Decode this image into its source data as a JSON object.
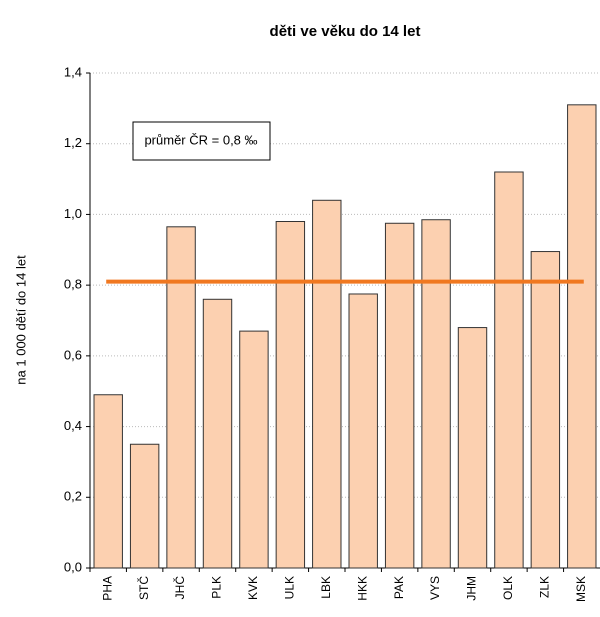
{
  "chart_data": {
    "type": "bar",
    "title": "děti ve věku do 14 let",
    "y_label": "na 1 000 dětí  do 14 let",
    "annotation": "průměr ČR = 0,8 ‰",
    "categories": [
      "PHA",
      "STČ",
      "JHČ",
      "PLK",
      "KVK",
      "ULK",
      "LBK",
      "HKK",
      "PAK",
      "VYS",
      "JHM",
      "OLK",
      "ZLK",
      "MSK"
    ],
    "values": [
      0.49,
      0.35,
      0.965,
      0.76,
      0.67,
      0.98,
      1.04,
      0.775,
      0.975,
      0.985,
      0.68,
      1.12,
      0.895,
      1.31
    ],
    "color": "#fcd0b0",
    "reference_line": {
      "value": 0.81,
      "color": "#f07820"
    },
    "ylim": [
      0,
      1.4
    ],
    "yticks": [
      {
        "value": 0,
        "label": "0,0"
      },
      {
        "value": 0.2,
        "label": "0,2"
      },
      {
        "value": 0.4,
        "label": "0,4"
      },
      {
        "value": 0.6,
        "label": "0,6"
      },
      {
        "value": 0.8,
        "label": "0,8"
      },
      {
        "value": 1.0,
        "label": "1,0"
      },
      {
        "value": 1.2,
        "label": "1,2"
      },
      {
        "value": 1.4,
        "label": "1,4"
      }
    ],
    "grid": true
  }
}
